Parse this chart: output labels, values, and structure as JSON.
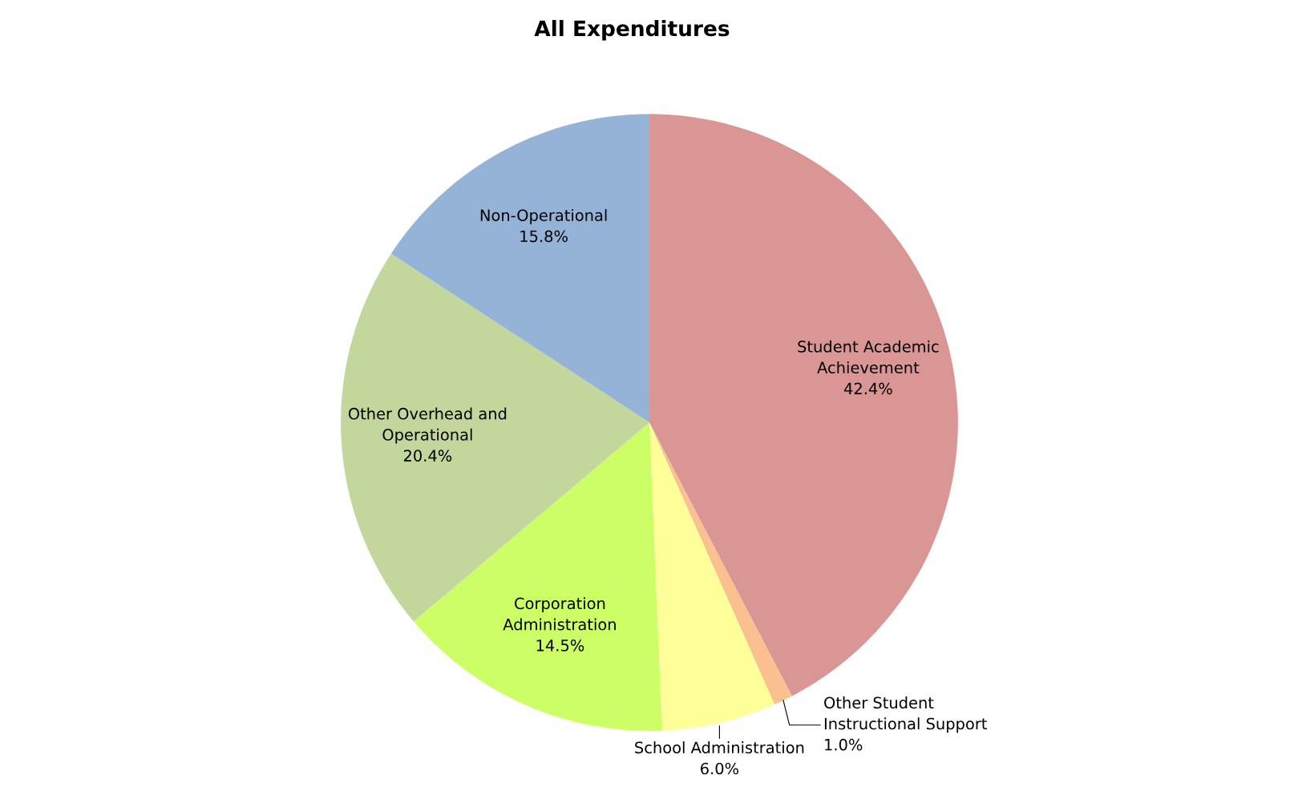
{
  "chart_data": {
    "type": "pie",
    "title": "All Expenditures",
    "categories": [
      "Student Academic\nAchievement",
      "Other Student\nInstructional Support",
      "School Administration",
      "Corporation\nAdministration",
      "Other Overhead and\nOperational",
      "Non-Operational"
    ],
    "values": [
      42.4,
      1.0,
      6.0,
      14.5,
      20.4,
      15.8
    ],
    "value_labels": [
      "42.4%",
      "1.0%",
      "6.0%",
      "14.5%",
      "20.4%",
      "15.8%"
    ],
    "colors": [
      "#d99694",
      "#fac090",
      "#ffff99",
      "#ccff66",
      "#c3d69b",
      "#95b3d7"
    ],
    "legend": false
  }
}
